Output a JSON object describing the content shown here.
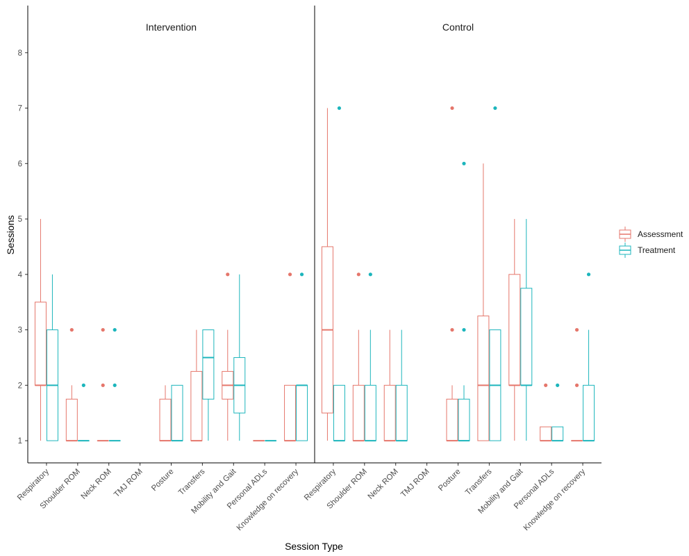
{
  "chart_data": {
    "type": "boxplot",
    "ylabel": "Sessions",
    "xlabel": "Session Type",
    "yticks": [
      1,
      2,
      3,
      4,
      5,
      6,
      7,
      8
    ],
    "ylim": [
      0.6,
      8.85
    ],
    "categories": [
      "Respiratory",
      "Shoulder ROM",
      "Neck ROM",
      "TMJ ROM",
      "Posture",
      "Transfers",
      "Mobility and Gait",
      "Personal ADLs",
      "Knowledge on recovery"
    ],
    "legend": {
      "position": "right",
      "entries": [
        "Assessment",
        "Treatment"
      ]
    },
    "colors": {
      "Assessment": "#e5766b",
      "Treatment": "#1cb5bc"
    },
    "panels": [
      {
        "title": "Intervention",
        "series": [
          {
            "name": "Assessment",
            "boxes": [
              {
                "category": "Respiratory",
                "q1": 2,
                "median": 2,
                "q3": 3.5,
                "lo": 1,
                "hi": 5,
                "outliers": []
              },
              {
                "category": "Shoulder ROM",
                "q1": 1,
                "median": 1,
                "q3": 1.75,
                "lo": 1,
                "hi": 2,
                "outliers": [
                  3
                ]
              },
              {
                "category": "Neck ROM",
                "q1": 1,
                "median": 1,
                "q3": 1,
                "lo": 1,
                "hi": 1,
                "outliers": [
                  2,
                  3
                ]
              },
              null,
              {
                "category": "Posture",
                "q1": 1,
                "median": 1,
                "q3": 1.75,
                "lo": 1,
                "hi": 2,
                "outliers": []
              },
              {
                "category": "Transfers",
                "q1": 1,
                "median": 1,
                "q3": 2.25,
                "lo": 1,
                "hi": 3,
                "outliers": []
              },
              {
                "category": "Mobility and Gait",
                "q1": 1.75,
                "median": 2,
                "q3": 2.25,
                "lo": 1,
                "hi": 3,
                "outliers": [
                  4
                ]
              },
              {
                "category": "Personal ADLs",
                "q1": 1,
                "median": 1,
                "q3": 1,
                "lo": 1,
                "hi": 1,
                "outliers": []
              },
              {
                "category": "Knowledge on recovery",
                "q1": 1,
                "median": 1,
                "q3": 2,
                "lo": 1,
                "hi": 2,
                "outliers": [
                  4
                ]
              }
            ]
          },
          {
            "name": "Treatment",
            "boxes": [
              {
                "category": "Respiratory",
                "q1": 1,
                "median": 2,
                "q3": 3,
                "lo": 1,
                "hi": 4,
                "outliers": []
              },
              {
                "category": "Shoulder ROM",
                "q1": 1,
                "median": 1,
                "q3": 1,
                "lo": 1,
                "hi": 1,
                "outliers": [
                  2
                ]
              },
              {
                "category": "Neck ROM",
                "q1": 1,
                "median": 1,
                "q3": 1,
                "lo": 1,
                "hi": 1,
                "outliers": [
                  2,
                  3
                ]
              },
              null,
              {
                "category": "Posture",
                "q1": 1,
                "median": 1,
                "q3": 2,
                "lo": 1,
                "hi": 2,
                "outliers": []
              },
              {
                "category": "Transfers",
                "q1": 1.75,
                "median": 2.5,
                "q3": 3,
                "lo": 1,
                "hi": 3,
                "outliers": []
              },
              {
                "category": "Mobility and Gait",
                "q1": 1.5,
                "median": 2,
                "q3": 2.5,
                "lo": 1,
                "hi": 4,
                "outliers": []
              },
              {
                "category": "Personal ADLs",
                "q1": 1,
                "median": 1,
                "q3": 1,
                "lo": 1,
                "hi": 1,
                "outliers": []
              },
              {
                "category": "Knowledge on recovery",
                "q1": 1,
                "median": 2,
                "q3": 2,
                "lo": 1,
                "hi": 2,
                "outliers": [
                  4
                ]
              }
            ]
          }
        ]
      },
      {
        "title": "Control",
        "series": [
          {
            "name": "Assessment",
            "boxes": [
              {
                "category": "Respiratory",
                "q1": 1.5,
                "median": 3,
                "q3": 4.5,
                "lo": 1,
                "hi": 7,
                "outliers": []
              },
              {
                "category": "Shoulder ROM",
                "q1": 1,
                "median": 1,
                "q3": 2,
                "lo": 1,
                "hi": 3,
                "outliers": [
                  4
                ]
              },
              {
                "category": "Neck ROM",
                "q1": 1,
                "median": 1,
                "q3": 2,
                "lo": 1,
                "hi": 3,
                "outliers": []
              },
              null,
              {
                "category": "Posture",
                "q1": 1,
                "median": 1,
                "q3": 1.75,
                "lo": 1,
                "hi": 2,
                "outliers": [
                  3,
                  7
                ]
              },
              {
                "category": "Transfers",
                "q1": 1,
                "median": 2,
                "q3": 3.25,
                "lo": 1,
                "hi": 6,
                "outliers": []
              },
              {
                "category": "Mobility and Gait",
                "q1": 2,
                "median": 2,
                "q3": 4,
                "lo": 1,
                "hi": 5,
                "outliers": []
              },
              {
                "category": "Personal ADLs",
                "q1": 1,
                "median": 1,
                "q3": 1.25,
                "lo": 1,
                "hi": 1.25,
                "outliers": [
                  2
                ]
              },
              {
                "category": "Knowledge on recovery",
                "q1": 1,
                "median": 1,
                "q3": 1,
                "lo": 1,
                "hi": 1,
                "outliers": [
                  2,
                  3
                ]
              }
            ]
          },
          {
            "name": "Treatment",
            "boxes": [
              {
                "category": "Respiratory",
                "q1": 1,
                "median": 1,
                "q3": 2,
                "lo": 1,
                "hi": 2,
                "outliers": [
                  7
                ]
              },
              {
                "category": "Shoulder ROM",
                "q1": 1,
                "median": 1,
                "q3": 2,
                "lo": 1,
                "hi": 3,
                "outliers": [
                  4
                ]
              },
              {
                "category": "Neck ROM",
                "q1": 1,
                "median": 1,
                "q3": 2,
                "lo": 1,
                "hi": 3,
                "outliers": []
              },
              null,
              {
                "category": "Posture",
                "q1": 1,
                "median": 1,
                "q3": 1.75,
                "lo": 1,
                "hi": 2,
                "outliers": [
                  3,
                  6
                ]
              },
              {
                "category": "Transfers",
                "q1": 1,
                "median": 2,
                "q3": 3,
                "lo": 1,
                "hi": 3,
                "outliers": [
                  7
                ]
              },
              {
                "category": "Mobility and Gait",
                "q1": 2,
                "median": 2,
                "q3": 3.75,
                "lo": 1,
                "hi": 5,
                "outliers": []
              },
              {
                "category": "Personal ADLs",
                "q1": 1,
                "median": 1,
                "q3": 1.25,
                "lo": 1,
                "hi": 1.25,
                "outliers": [
                  2
                ]
              },
              {
                "category": "Knowledge on recovery",
                "q1": 1,
                "median": 1,
                "q3": 2,
                "lo": 1,
                "hi": 3,
                "outliers": [
                  4
                ]
              }
            ]
          }
        ]
      }
    ]
  }
}
